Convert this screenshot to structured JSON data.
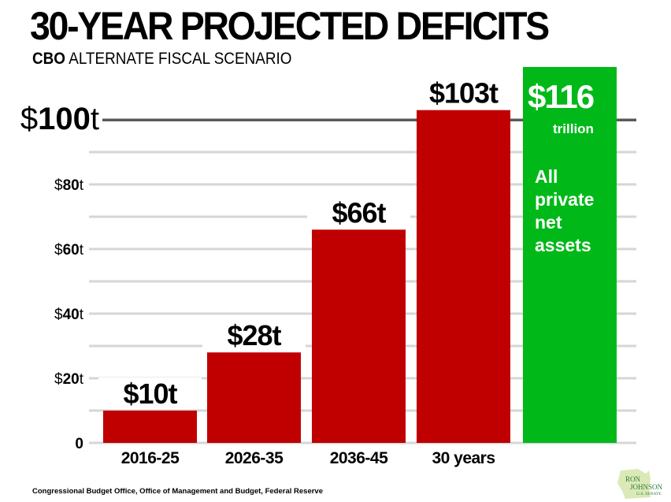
{
  "title": "30-YEAR PROJECTED DEFICITS",
  "subtitle_bold": "CBO",
  "subtitle_rest": " ALTERNATE FISCAL SCENARIO",
  "source": "Congressional Budget Office, Office of Management and Budget, Federal Reserve",
  "logo": {
    "line1": "RON",
    "line2": "JOHNSON",
    "line3": "U.S. SENATE"
  },
  "colors": {
    "deficit_bar": "#c00000",
    "assets_bar": "#00b919",
    "gridline": "#d6d6d6",
    "reference_line": "#5a5a5a"
  },
  "chart_data": {
    "type": "bar",
    "title": "30-YEAR PROJECTED DEFICITS",
    "subtitle": "CBO ALTERNATE FISCAL SCENARIO",
    "xlabel": "",
    "ylabel": "",
    "ylim": [
      0,
      100
    ],
    "grid": true,
    "categories": [
      "2016-25",
      "2026-35",
      "2036-45",
      "30 years"
    ],
    "values": [
      10,
      28,
      66,
      103
    ],
    "data_labels": [
      "$10t",
      "$28t",
      "$66t",
      "$103t"
    ],
    "yticks": [
      {
        "value": 0,
        "prefix": "",
        "num": "0",
        "suffix": ""
      },
      {
        "value": 20,
        "prefix": "$",
        "num": "20",
        "suffix": "t"
      },
      {
        "value": 40,
        "prefix": "$",
        "num": "40",
        "suffix": "t"
      },
      {
        "value": 60,
        "prefix": "$",
        "num": "60",
        "suffix": "t"
      },
      {
        "value": 80,
        "prefix": "$",
        "num": "80",
        "suffix": "t"
      },
      {
        "value": 100,
        "prefix": "$",
        "num": "100",
        "suffix": "t"
      }
    ],
    "reference_line": 100,
    "comparison_bar": {
      "value": 116,
      "label_value": "$116",
      "label_unit": "trillion",
      "description": [
        "All",
        "private",
        "net",
        "assets"
      ]
    }
  }
}
